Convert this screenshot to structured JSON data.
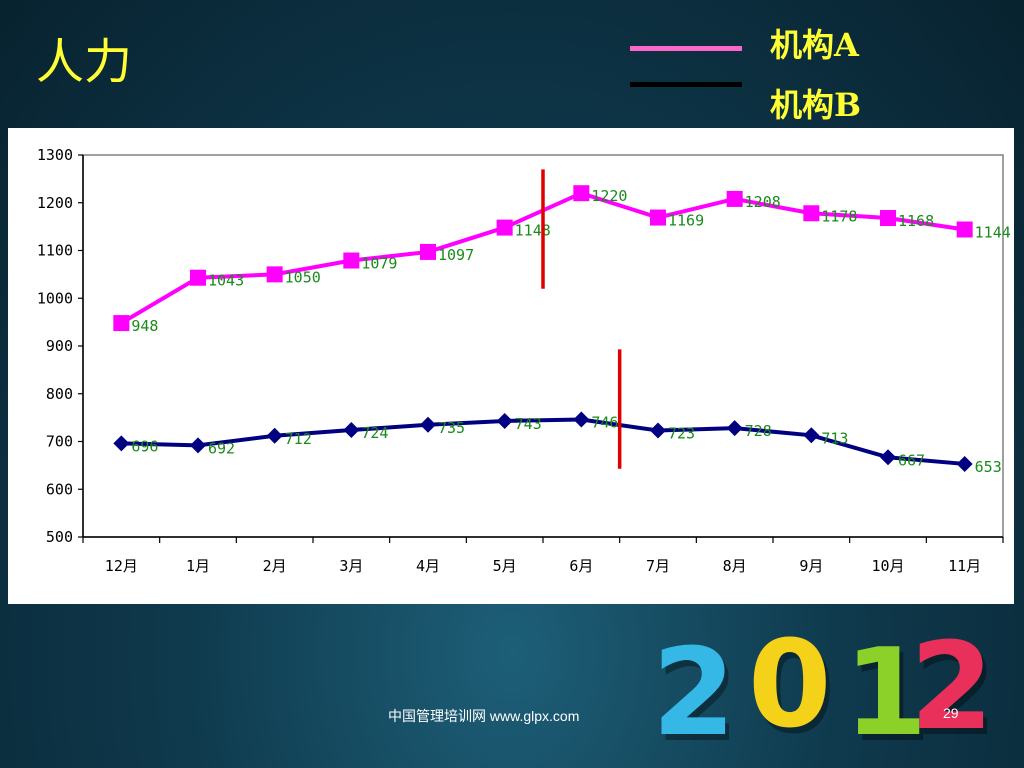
{
  "slide": {
    "title": "人力",
    "footer": "中国管理培训网  www.glpx.com",
    "page_number": "29",
    "decoration_text": [
      "2",
      "0",
      "1",
      "2"
    ]
  },
  "legend": [
    {
      "name": "机构A",
      "color": "#ff66cc"
    },
    {
      "name": "机构B",
      "color": "#000000"
    }
  ],
  "chart_data": {
    "type": "line",
    "categories": [
      "12月",
      "1月",
      "2月",
      "3月",
      "4月",
      "5月",
      "6月",
      "7月",
      "8月",
      "9月",
      "10月",
      "11月"
    ],
    "series": [
      {
        "name": "机构A",
        "color": "#ff00ff",
        "marker": "square",
        "values": [
          948,
          1043,
          1050,
          1079,
          1097,
          1148,
          1220,
          1169,
          1208,
          1178,
          1168,
          1144
        ],
        "labels": [
          "948",
          "1043",
          "1050",
          "1079",
          "1097",
          "1148",
          "1220",
          "1169",
          "1208",
          "1178",
          "1168",
          "1144"
        ]
      },
      {
        "name": "机构B",
        "color": "#000080",
        "marker": "diamond",
        "values": [
          696,
          692,
          712,
          724,
          735,
          743,
          746,
          723,
          728,
          713,
          667,
          653
        ],
        "labels": [
          "696",
          "692",
          "712",
          "724",
          "735",
          "743",
          "746",
          "723",
          "728",
          "713",
          "667",
          "653"
        ]
      }
    ],
    "ylim": [
      500,
      1300
    ],
    "yticks": [
      "500",
      "600",
      "700",
      "800",
      "900",
      "1000",
      "1100",
      "1200",
      "1300"
    ],
    "annotation_color": "#e00000",
    "legend_position": "top-right",
    "grid": false
  }
}
